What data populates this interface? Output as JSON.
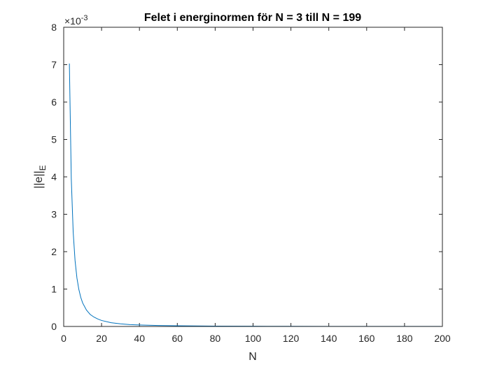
{
  "chart_data": {
    "type": "line",
    "title": "Felet i energinormen för N = 3 till N = 199",
    "xlabel": "N",
    "ylabel_main": "||e||",
    "ylabel_sub": "E",
    "y_exponent_prefix": "×10",
    "y_exponent_power": "-3",
    "xlim": [
      0,
      200
    ],
    "ylim": [
      0,
      8
    ],
    "y_scale_factor": 0.001,
    "x_ticks": [
      "0",
      "20",
      "40",
      "60",
      "80",
      "100",
      "120",
      "140",
      "160",
      "180",
      "200"
    ],
    "y_ticks": [
      "0",
      "1",
      "2",
      "3",
      "4",
      "5",
      "6",
      "7",
      "8"
    ],
    "grid": false,
    "series": [
      {
        "color": "#0072BD",
        "x": [
          3,
          4,
          5,
          6,
          7,
          8,
          9,
          10,
          12,
          14,
          16,
          18,
          20,
          25,
          30,
          35,
          40,
          50,
          60,
          70,
          80,
          100,
          120,
          140,
          160,
          180,
          199
        ],
        "y": [
          7.03,
          3.96,
          2.53,
          1.76,
          1.29,
          0.99,
          0.78,
          0.63,
          0.44,
          0.32,
          0.25,
          0.2,
          0.16,
          0.1,
          0.07,
          0.05,
          0.04,
          0.025,
          0.018,
          0.013,
          0.01,
          0.006,
          0.004,
          0.003,
          0.0025,
          0.002,
          0.0016
        ]
      }
    ]
  }
}
